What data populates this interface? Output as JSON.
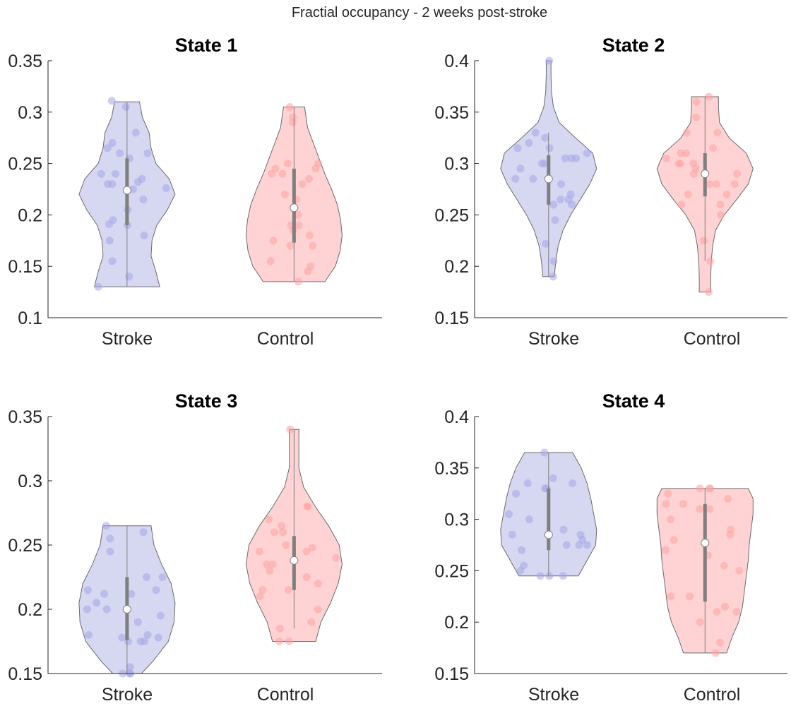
{
  "figure": {
    "suptitle": "Fractial occupancy - 2 weeks post-stroke"
  },
  "colors": {
    "stroke_fill": "#d6d7f1",
    "stroke_point": "#a4a6e6",
    "control_fill": "#ffd3d3",
    "control_point": "#ffa3a3",
    "outline": "#6b6b6b",
    "box": "#7f7f7f",
    "median_fill": "#ffffff"
  },
  "chart_data": [
    {
      "type": "violin",
      "title": "State 1",
      "categories": [
        "Stroke",
        "Control"
      ],
      "ylim": [
        0.1,
        0.35
      ],
      "yticks": [
        0.1,
        0.15,
        0.2,
        0.25,
        0.3,
        0.35
      ],
      "ytick_labels": [
        "0.1",
        "0.15",
        "0.2",
        "0.25",
        "0.3",
        "0.35"
      ],
      "grid": false,
      "groups": [
        {
          "category": "Stroke",
          "median": 0.224,
          "q1": 0.19,
          "q3": 0.255,
          "whisker": [
            0.13,
            0.31
          ],
          "profile": [
            [
              0.13,
              0.68
            ],
            [
              0.145,
              0.6
            ],
            [
              0.16,
              0.5
            ],
            [
              0.175,
              0.52
            ],
            [
              0.19,
              0.62
            ],
            [
              0.205,
              0.84
            ],
            [
              0.22,
              1.0
            ],
            [
              0.235,
              0.88
            ],
            [
              0.25,
              0.6
            ],
            [
              0.265,
              0.5
            ],
            [
              0.28,
              0.46
            ],
            [
              0.295,
              0.32
            ],
            [
              0.31,
              0.26
            ]
          ],
          "points": [
            0.311,
            0.305,
            0.28,
            0.27,
            0.265,
            0.26,
            0.26,
            0.255,
            0.24,
            0.24,
            0.235,
            0.232,
            0.23,
            0.23,
            0.226,
            0.225,
            0.215,
            0.205,
            0.195,
            0.191,
            0.19,
            0.18,
            0.175,
            0.155,
            0.14,
            0.13
          ]
        },
        {
          "category": "Control",
          "median": 0.207,
          "q1": 0.173,
          "q3": 0.245,
          "whisker": [
            0.135,
            0.305
          ],
          "profile": [
            [
              0.135,
              0.64
            ],
            [
              0.15,
              0.86
            ],
            [
              0.165,
              0.96
            ],
            [
              0.18,
              1.0
            ],
            [
              0.195,
              0.97
            ],
            [
              0.21,
              0.9
            ],
            [
              0.225,
              0.78
            ],
            [
              0.24,
              0.64
            ],
            [
              0.255,
              0.52
            ],
            [
              0.27,
              0.4
            ],
            [
              0.285,
              0.28
            ],
            [
              0.305,
              0.22
            ]
          ],
          "points": [
            0.305,
            0.295,
            0.29,
            0.25,
            0.25,
            0.245,
            0.245,
            0.24,
            0.24,
            0.235,
            0.23,
            0.22,
            0.215,
            0.2,
            0.19,
            0.19,
            0.185,
            0.18,
            0.175,
            0.17,
            0.17,
            0.155,
            0.15,
            0.145,
            0.135
          ]
        }
      ]
    },
    {
      "type": "violin",
      "title": "State 2",
      "categories": [
        "Stroke",
        "Control"
      ],
      "ylim": [
        0.15,
        0.4
      ],
      "yticks": [
        0.15,
        0.2,
        0.25,
        0.3,
        0.35,
        0.4
      ],
      "ytick_labels": [
        "0.15",
        "0.2",
        "0.25",
        "0.3",
        "0.35",
        "0.4"
      ],
      "grid": false,
      "groups": [
        {
          "category": "Stroke",
          "median": 0.285,
          "q1": 0.26,
          "q3": 0.308,
          "whisker": [
            0.19,
            0.33
          ],
          "profile": [
            [
              0.19,
              0.12
            ],
            [
              0.205,
              0.15
            ],
            [
              0.22,
              0.2
            ],
            [
              0.235,
              0.3
            ],
            [
              0.25,
              0.46
            ],
            [
              0.265,
              0.66
            ],
            [
              0.28,
              0.86
            ],
            [
              0.295,
              1.0
            ],
            [
              0.31,
              0.92
            ],
            [
              0.325,
              0.56
            ],
            [
              0.34,
              0.22
            ],
            [
              0.355,
              0.1
            ],
            [
              0.37,
              0.06
            ],
            [
              0.385,
              0.05
            ],
            [
              0.4,
              0.05
            ]
          ],
          "points": [
            0.4,
            0.33,
            0.325,
            0.32,
            0.315,
            0.315,
            0.31,
            0.305,
            0.305,
            0.305,
            0.3,
            0.3,
            0.295,
            0.285,
            0.285,
            0.28,
            0.27,
            0.265,
            0.265,
            0.26,
            0.26,
            0.245,
            0.222,
            0.205,
            0.19
          ]
        },
        {
          "category": "Control",
          "median": 0.29,
          "q1": 0.268,
          "q3": 0.31,
          "whisker": [
            0.205,
            0.365
          ],
          "profile": [
            [
              0.175,
              0.12
            ],
            [
              0.19,
              0.12
            ],
            [
              0.205,
              0.13
            ],
            [
              0.22,
              0.16
            ],
            [
              0.235,
              0.22
            ],
            [
              0.25,
              0.4
            ],
            [
              0.265,
              0.66
            ],
            [
              0.28,
              0.9
            ],
            [
              0.295,
              1.0
            ],
            [
              0.31,
              0.86
            ],
            [
              0.325,
              0.5
            ],
            [
              0.34,
              0.3
            ],
            [
              0.355,
              0.28
            ],
            [
              0.365,
              0.28
            ]
          ],
          "points": [
            0.365,
            0.36,
            0.345,
            0.33,
            0.33,
            0.315,
            0.31,
            0.31,
            0.305,
            0.3,
            0.3,
            0.3,
            0.295,
            0.29,
            0.29,
            0.28,
            0.28,
            0.28,
            0.27,
            0.27,
            0.26,
            0.26,
            0.25,
            0.225,
            0.205,
            0.175
          ]
        }
      ]
    },
    {
      "type": "violin",
      "title": "State 3",
      "categories": [
        "Stroke",
        "Control"
      ],
      "ylim": [
        0.15,
        0.35
      ],
      "yticks": [
        0.15,
        0.2,
        0.25,
        0.3,
        0.35
      ],
      "ytick_labels": [
        "0.15",
        "0.2",
        "0.25",
        "0.3",
        "0.35"
      ],
      "grid": false,
      "groups": [
        {
          "category": "Stroke",
          "median": 0.2,
          "q1": 0.176,
          "q3": 0.225,
          "whisker": [
            0.15,
            0.265
          ],
          "profile": [
            [
              0.15,
              0.3
            ],
            [
              0.16,
              0.55
            ],
            [
              0.175,
              0.86
            ],
            [
              0.19,
              0.98
            ],
            [
              0.205,
              1.0
            ],
            [
              0.22,
              0.92
            ],
            [
              0.235,
              0.72
            ],
            [
              0.25,
              0.56
            ],
            [
              0.265,
              0.5
            ]
          ],
          "points": [
            0.265,
            0.26,
            0.255,
            0.245,
            0.225,
            0.225,
            0.215,
            0.215,
            0.212,
            0.212,
            0.205,
            0.2,
            0.2,
            0.195,
            0.19,
            0.18,
            0.18,
            0.178,
            0.178,
            0.175,
            0.175,
            0.175,
            0.155,
            0.15,
            0.15,
            0.15
          ]
        },
        {
          "category": "Control",
          "median": 0.238,
          "q1": 0.215,
          "q3": 0.257,
          "whisker": [
            0.185,
            0.34
          ],
          "profile": [
            [
              0.175,
              0.45
            ],
            [
              0.19,
              0.56
            ],
            [
              0.205,
              0.76
            ],
            [
              0.22,
              0.92
            ],
            [
              0.235,
              1.0
            ],
            [
              0.25,
              0.94
            ],
            [
              0.265,
              0.72
            ],
            [
              0.28,
              0.44
            ],
            [
              0.295,
              0.2
            ],
            [
              0.31,
              0.1
            ],
            [
              0.325,
              0.1
            ],
            [
              0.34,
              0.1
            ]
          ],
          "points": [
            0.34,
            0.28,
            0.28,
            0.27,
            0.265,
            0.26,
            0.26,
            0.25,
            0.248,
            0.245,
            0.245,
            0.24,
            0.235,
            0.235,
            0.23,
            0.225,
            0.22,
            0.215,
            0.215,
            0.21,
            0.2,
            0.19,
            0.185,
            0.175,
            0.175
          ]
        }
      ]
    },
    {
      "type": "violin",
      "title": "State 4",
      "categories": [
        "Stroke",
        "Control"
      ],
      "ylim": [
        0.15,
        0.4
      ],
      "yticks": [
        0.15,
        0.2,
        0.25,
        0.3,
        0.35,
        0.4
      ],
      "ytick_labels": [
        "0.15",
        "0.2",
        "0.25",
        "0.3",
        "0.35",
        "0.4"
      ],
      "grid": false,
      "groups": [
        {
          "category": "Stroke",
          "median": 0.285,
          "q1": 0.27,
          "q3": 0.33,
          "whisker": [
            0.245,
            0.365
          ],
          "profile": [
            [
              0.245,
              0.62
            ],
            [
              0.26,
              0.8
            ],
            [
              0.275,
              0.98
            ],
            [
              0.29,
              1.0
            ],
            [
              0.305,
              0.94
            ],
            [
              0.32,
              0.88
            ],
            [
              0.335,
              0.8
            ],
            [
              0.35,
              0.68
            ],
            [
              0.365,
              0.5
            ]
          ],
          "points": [
            0.365,
            0.34,
            0.335,
            0.335,
            0.33,
            0.33,
            0.325,
            0.305,
            0.3,
            0.29,
            0.285,
            0.285,
            0.28,
            0.275,
            0.275,
            0.275,
            0.27,
            0.255,
            0.25,
            0.245,
            0.245,
            0.245
          ]
        },
        {
          "category": "Control",
          "median": 0.277,
          "q1": 0.22,
          "q3": 0.315,
          "whisker": [
            0.17,
            0.33
          ],
          "profile": [
            [
              0.17,
              0.45
            ],
            [
              0.185,
              0.56
            ],
            [
              0.2,
              0.7
            ],
            [
              0.215,
              0.78
            ],
            [
              0.23,
              0.82
            ],
            [
              0.245,
              0.86
            ],
            [
              0.26,
              0.9
            ],
            [
              0.275,
              0.92
            ],
            [
              0.29,
              0.96
            ],
            [
              0.305,
              1.0
            ],
            [
              0.32,
              1.0
            ],
            [
              0.33,
              0.9
            ]
          ],
          "points": [
            0.33,
            0.33,
            0.33,
            0.325,
            0.32,
            0.315,
            0.315,
            0.31,
            0.31,
            0.3,
            0.29,
            0.285,
            0.28,
            0.27,
            0.265,
            0.255,
            0.25,
            0.225,
            0.225,
            0.215,
            0.21,
            0.21,
            0.2,
            0.18,
            0.17
          ]
        }
      ]
    }
  ]
}
